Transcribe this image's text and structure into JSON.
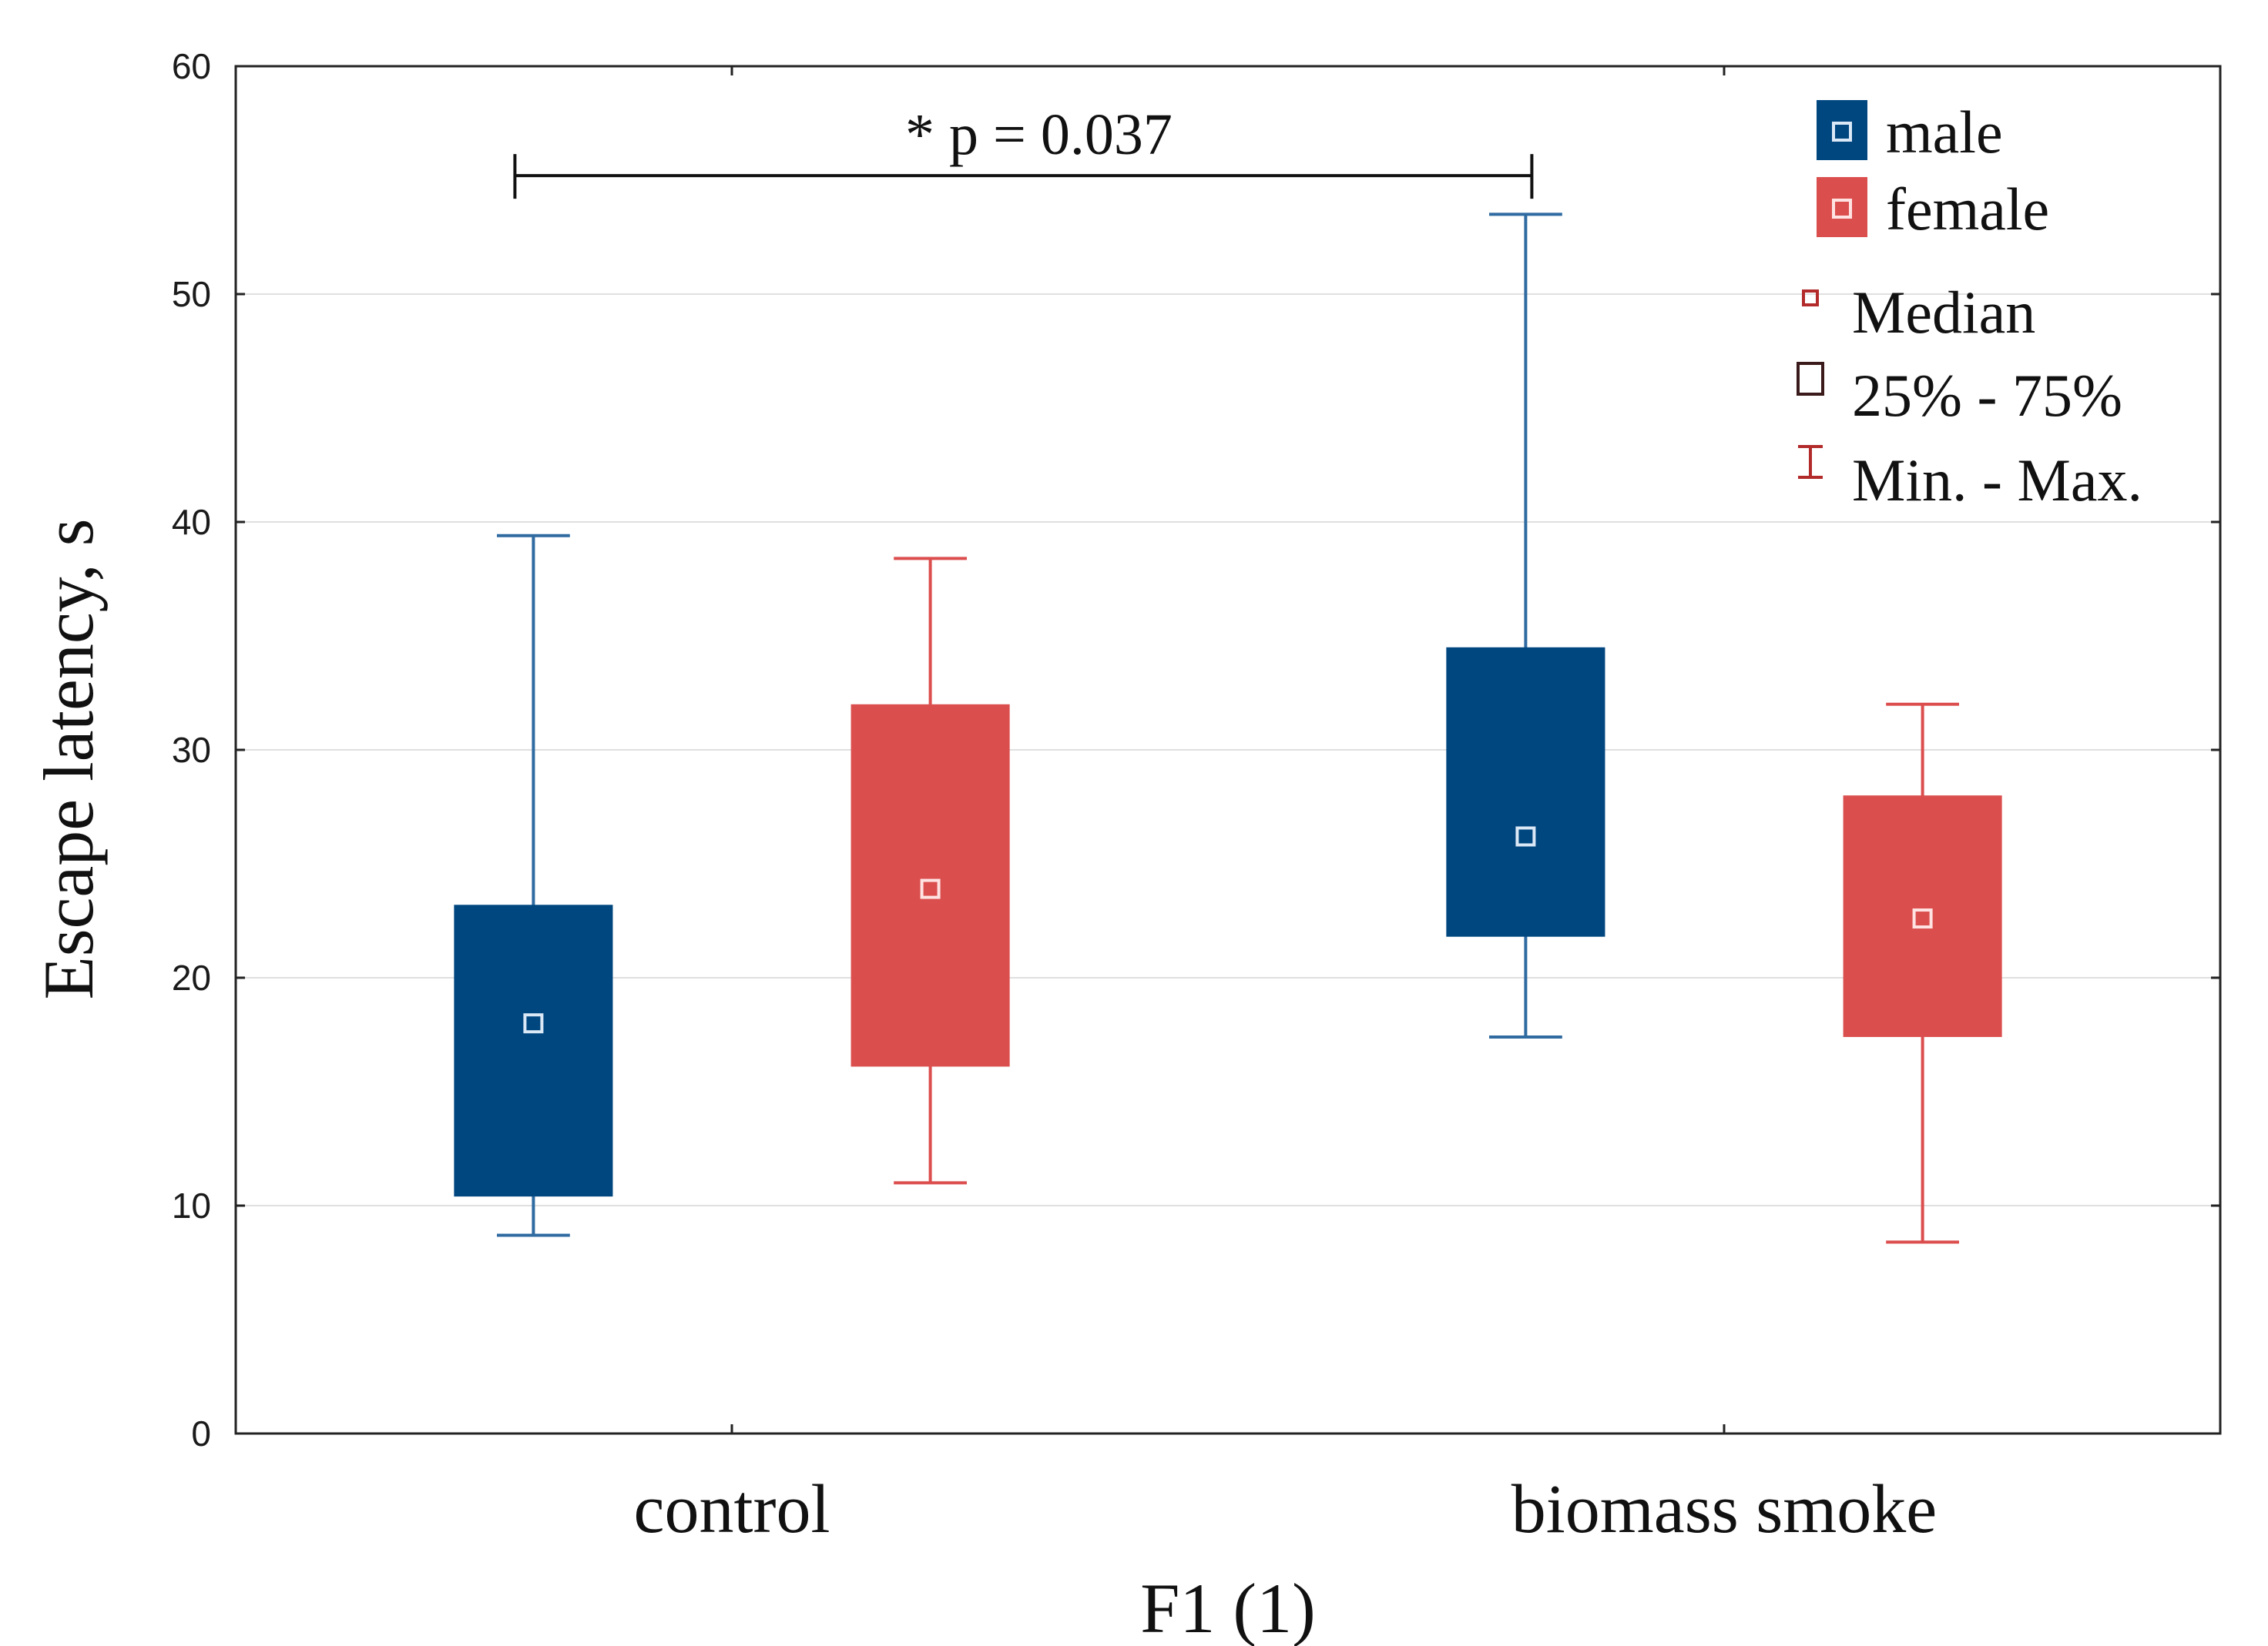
{
  "chart_data": {
    "type": "boxplot",
    "xlabel": "F1 (1)",
    "ylabel": "Escape latency, s",
    "ylim": [
      0,
      60
    ],
    "yticks": [
      0,
      10,
      20,
      30,
      40,
      50,
      60
    ],
    "grid": true,
    "categories": [
      "control",
      "biomass smoke"
    ],
    "series": [
      {
        "name": "male",
        "color": "#00467f",
        "marker_color": "#dbe8f6",
        "whisker_color": "#2f6aa0",
        "boxes": [
          {
            "category": "control",
            "min": 8.7,
            "q1": 10.4,
            "median": 18.0,
            "q3": 23.2,
            "max": 39.4
          },
          {
            "category": "biomass smoke",
            "min": 17.4,
            "q1": 21.8,
            "median": 26.2,
            "q3": 34.5,
            "max": 53.5
          }
        ]
      },
      {
        "name": "female",
        "color": "#da4f4e",
        "marker_color": "#ffe3e3",
        "whisker_color": "#dc4e4e",
        "boxes": [
          {
            "category": "control",
            "min": 11.0,
            "q1": 16.1,
            "median": 23.9,
            "q3": 32.0,
            "max": 38.4
          },
          {
            "category": "biomass smoke",
            "min": 8.4,
            "q1": 17.4,
            "median": 22.6,
            "q3": 28.0,
            "max": 32.0
          }
        ]
      }
    ],
    "legend": {
      "position": "top-right",
      "median_label": "Median",
      "iqr_label": "25% - 75%",
      "range_label": "Min. - Max.",
      "stat_color": "#b22a2a"
    },
    "annotation": {
      "text": "* p = 0.037",
      "from": "control/male",
      "to": "biomass smoke/male",
      "y": 55.2
    }
  }
}
